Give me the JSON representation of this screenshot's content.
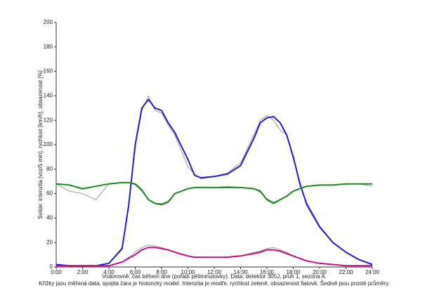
{
  "chart_data": {
    "type": "line",
    "y_label": "Svisle: intenzita [voz/5 min], rychlost [km/h], obsazenost [%]",
    "x_label": "Vodorovně: čas během dne (pořadí pětiminutovky). Data: detektor 305J, pruh 1, sezóna A.",
    "note": "Křížky jsou měřená data, spojitá čára je historický model. Intenzita je modře, rychlost zeleně, obsazenost fialově. Šedivě jsou prosté průměry.",
    "x": [
      0,
      1,
      2,
      3,
      4,
      5,
      5.5,
      6,
      6.5,
      7,
      7.5,
      8,
      8.5,
      9,
      10,
      10.5,
      11,
      12,
      13,
      14,
      15,
      15.5,
      16,
      16.5,
      17,
      17.5,
      18,
      18.5,
      19,
      20,
      21,
      22,
      23,
      24
    ],
    "series": [
      {
        "color": "#999999",
        "values": [
          2,
          1,
          1,
          1,
          3,
          16,
          52,
          98,
          128,
          140,
          128,
          126,
          116,
          108,
          82,
          76,
          72,
          74,
          77,
          85,
          108,
          120,
          124,
          120,
          112,
          108,
          88,
          70,
          50,
          32,
          20,
          12,
          6,
          2
        ]
      },
      {
        "color": "#999999",
        "values": [
          68,
          62,
          60,
          55,
          68,
          69,
          69,
          67,
          62,
          55,
          52,
          52,
          54,
          60,
          64,
          65,
          65,
          65,
          66,
          65,
          64,
          61,
          56,
          53,
          55,
          58,
          62,
          64,
          66,
          67,
          67,
          68,
          68,
          66
        ]
      },
      {
        "color": "#999999",
        "values": [
          1,
          1,
          1,
          1,
          1,
          4,
          8,
          12,
          16,
          18,
          17,
          16,
          14,
          12,
          9,
          8,
          8,
          8,
          8,
          9,
          12,
          13,
          15,
          16,
          14,
          12,
          9,
          7,
          5,
          3,
          2,
          1,
          1,
          1
        ]
      },
      {
        "color": "#1f1fd0",
        "values": [
          2,
          1,
          1,
          1,
          3,
          15,
          50,
          100,
          130,
          137,
          130,
          128,
          118,
          110,
          88,
          75,
          73,
          74,
          76,
          83,
          105,
          118,
          122,
          123,
          118,
          108,
          90,
          68,
          52,
          33,
          20,
          12,
          6,
          2
        ]
      },
      {
        "color": "#1a8a1a",
        "values": [
          68,
          67,
          64,
          66,
          68,
          69,
          69,
          68,
          63,
          55,
          52,
          51,
          53,
          60,
          64,
          65,
          65,
          65,
          65,
          65,
          64,
          62,
          55,
          52,
          55,
          58,
          62,
          64,
          66,
          67,
          67,
          68,
          68,
          68
        ]
      },
      {
        "color": "#c0108c",
        "values": [
          1,
          1,
          1,
          1,
          1,
          4,
          7,
          10,
          14,
          16,
          16,
          15,
          14,
          12,
          9,
          8,
          8,
          8,
          8,
          9,
          11,
          12,
          14,
          14,
          13,
          11,
          9,
          7,
          5,
          3,
          2,
          1,
          1,
          1
        ]
      }
    ],
    "xlim": [
      0,
      24
    ],
    "xticks": [
      {
        "value": 0,
        "label": "0:00"
      },
      {
        "value": 2,
        "label": "2:00"
      },
      {
        "value": 4,
        "label": "4:00"
      },
      {
        "value": 6,
        "label": "6:00"
      },
      {
        "value": 8,
        "label": "8:00"
      },
      {
        "value": 10,
        "label": "10:00"
      },
      {
        "value": 12,
        "label": "12:00"
      },
      {
        "value": 14,
        "label": "14:00"
      },
      {
        "value": 16,
        "label": "16:00"
      },
      {
        "value": 18,
        "label": "18:00"
      },
      {
        "value": 20,
        "label": "20:00"
      },
      {
        "value": 22,
        "label": "22:00"
      },
      {
        "value": 24,
        "label": "24:00"
      }
    ],
    "ylim": [
      0,
      200
    ],
    "yticks": [
      0,
      20,
      40,
      60,
      80,
      100,
      120,
      140,
      160,
      180,
      200
    ]
  }
}
